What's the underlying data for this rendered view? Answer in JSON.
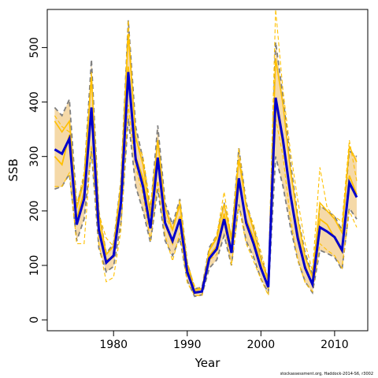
{
  "credit": "stockassessment.org, Haddock-2014-S6, r3002",
  "colors": {
    "band_fill": "#F5D9A8",
    "band_edge": "#7F7F7F",
    "best_line": "#0000CD",
    "yellow_line": "#FFC000",
    "axes": "#000000"
  },
  "chart_data": {
    "type": "line",
    "title": "",
    "xlabel": "Year",
    "ylabel": "SSB",
    "xlim": [
      1971,
      2014.5
    ],
    "ylim": [
      -20,
      570
    ],
    "xticks": [
      1980,
      1990,
      2000,
      2010
    ],
    "yticks": [
      0,
      100,
      200,
      300,
      400,
      500
    ],
    "grid": false,
    "legend": "none",
    "x": [
      1972,
      1973,
      1974,
      1975,
      1976,
      1977,
      1978,
      1979,
      1980,
      1981,
      1982,
      1983,
      1984,
      1985,
      1986,
      1987,
      1988,
      1989,
      1990,
      1991,
      1992,
      1993,
      1994,
      1995,
      1996,
      1997,
      1998,
      1999,
      2000,
      2001,
      2002,
      2003,
      2004,
      2005,
      2006,
      2007,
      2008,
      2009,
      2010,
      2011,
      2012,
      2013
    ],
    "series": [
      {
        "values": [
          313,
          305,
          333,
          175,
          222,
          390,
          165,
          105,
          118,
          215,
          455,
          295,
          245,
          168,
          298,
          178,
          145,
          185,
          88,
          50,
          52,
          113,
          130,
          185,
          123,
          260,
          178,
          140,
          95,
          60,
          408,
          330,
          230,
          150,
          95,
          65,
          170,
          162,
          152,
          128,
          252,
          225
        ]
      },
      {
        "values": [
          240,
          245,
          268,
          145,
          185,
          310,
          132,
          88,
          98,
          178,
          370,
          245,
          200,
          142,
          240,
          145,
          118,
          150,
          72,
          43,
          46,
          95,
          110,
          155,
          100,
          212,
          145,
          115,
          75,
          50,
          300,
          245,
          170,
          110,
          70,
          50,
          128,
          122,
          115,
          92,
          205,
          185
        ]
      },
      {
        "values": [
          390,
          375,
          405,
          210,
          260,
          478,
          200,
          122,
          140,
          255,
          550,
          355,
          295,
          198,
          357,
          215,
          175,
          222,
          105,
          57,
          60,
          133,
          155,
          215,
          150,
          315,
          215,
          170,
          115,
          72,
          510,
          410,
          290,
          190,
          123,
          82,
          210,
          200,
          190,
          165,
          310,
          300
        ]
      },
      {
        "values": [
          300,
          285,
          340,
          185,
          235,
          380,
          175,
          110,
          115,
          215,
          465,
          300,
          260,
          170,
          290,
          175,
          140,
          190,
          92,
          52,
          53,
          118,
          135,
          195,
          130,
          250,
          185,
          150,
          100,
          58,
          400,
          320,
          235,
          160,
          100,
          65,
          185,
          175,
          150,
          125,
          265,
          230
        ]
      },
      {
        "values": [
          365,
          345,
          365,
          205,
          255,
          445,
          195,
          120,
          135,
          248,
          525,
          335,
          285,
          190,
          330,
          205,
          165,
          212,
          100,
          55,
          57,
          128,
          150,
          213,
          148,
          295,
          210,
          165,
          112,
          70,
          480,
          395,
          275,
          185,
          115,
          78,
          215,
          200,
          185,
          160,
          318,
          290
        ]
      },
      {
        "values": [
          245,
          245,
          270,
          140,
          140,
          320,
          140,
          70,
          78,
          165,
          395,
          280,
          230,
          145,
          255,
          155,
          108,
          160,
          68,
          45,
          44,
          110,
          120,
          180,
          100,
          208,
          140,
          108,
          75,
          45,
          370,
          300,
          185,
          110,
          68,
          52,
          140,
          128,
          118,
          95,
          200,
          170
        ]
      },
      {
        "values": [
          375,
          355,
          345,
          210,
          270,
          455,
          195,
          150,
          135,
          255,
          550,
          330,
          300,
          210,
          330,
          190,
          165,
          220,
          105,
          62,
          55,
          130,
          155,
          235,
          150,
          315,
          210,
          175,
          125,
          75,
          570,
          420,
          310,
          220,
          140,
          90,
          280,
          205,
          190,
          180,
          330,
          255
        ]
      }
    ]
  }
}
